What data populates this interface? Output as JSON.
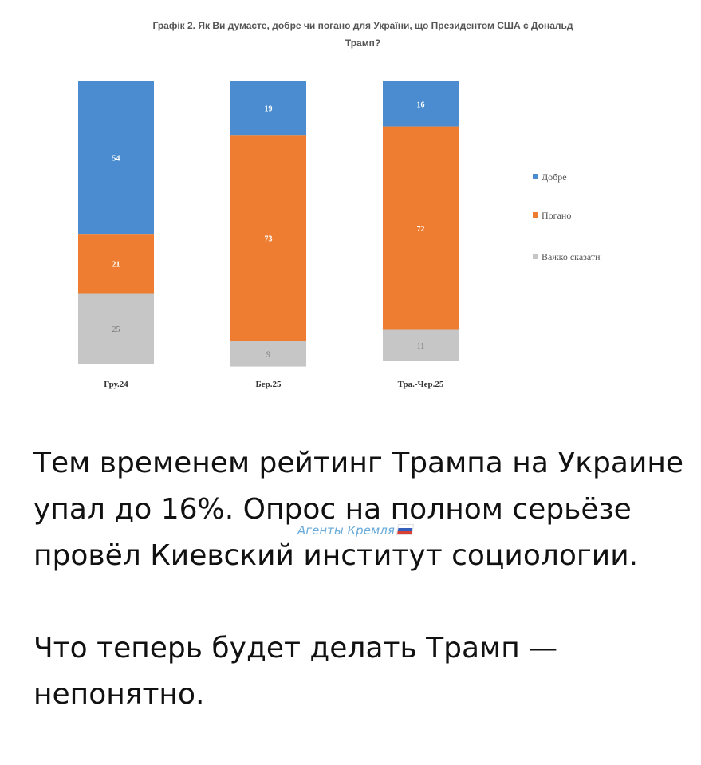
{
  "chart_data": {
    "type": "bar",
    "stacked": true,
    "title": "Графік 2. Як Ви думаєте, добре чи погано для України, що Президентом США є Дональд Трамп?",
    "categories": [
      "Гру.24",
      "Бер.25",
      "Тра.-Чер.25"
    ],
    "series": [
      {
        "name": "Добре",
        "values": [
          54,
          19,
          16
        ],
        "color": "#4a8ccf"
      },
      {
        "name": "Погано",
        "values": [
          21,
          73,
          72
        ],
        "color": "#ee7d31"
      },
      {
        "name": "Важко сказати",
        "values": [
          25,
          9,
          11
        ],
        "color": "#c6c6c6"
      }
    ],
    "ylim": [
      0,
      100
    ],
    "legend_position": "right",
    "grid": false
  },
  "post": {
    "paragraph1": "Тем временем рейтинг Трампа на Украине упал до 16%. Опрос на полном серьёзе провёл Киевский институт социологии.",
    "paragraph2": "Что теперь будет делать Трамп — непонятно."
  },
  "watermark": {
    "text": "Агенты Кремля"
  }
}
